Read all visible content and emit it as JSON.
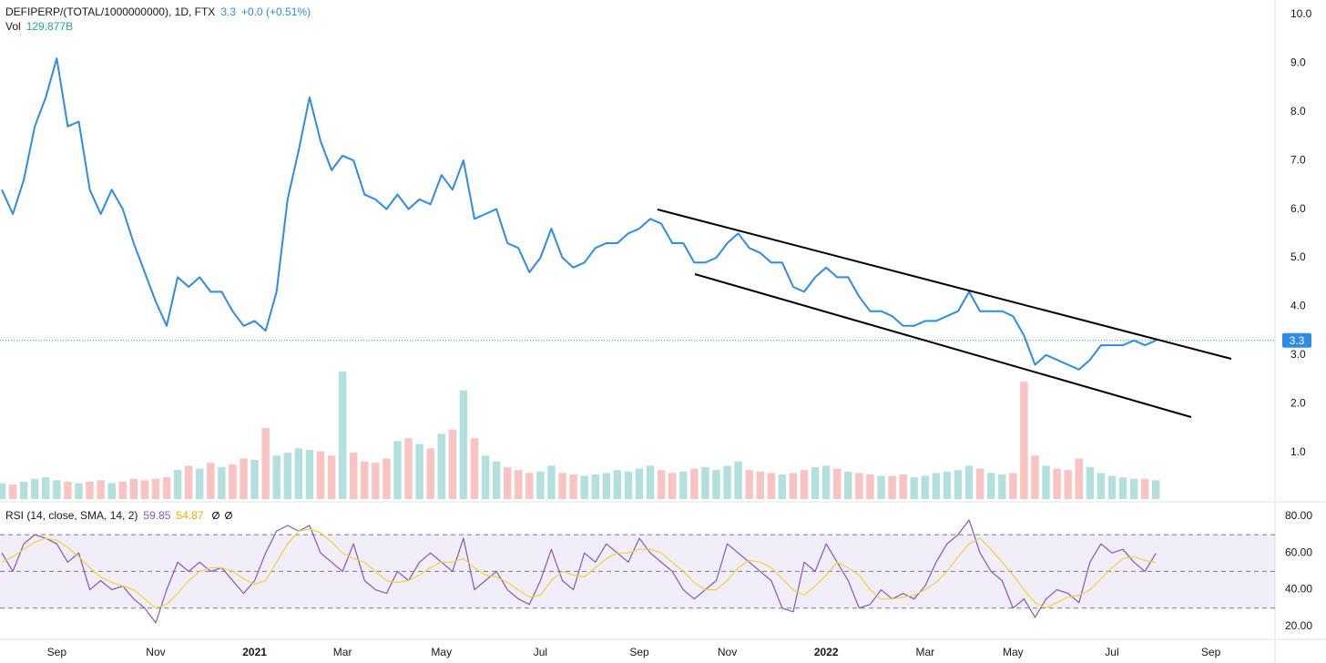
{
  "chart_data": [
    {
      "type": "line",
      "title": "DEFIPERP/(TOTAL/1000000000), 1D, FTX",
      "change": "+0.0 (+0.51%)",
      "color": "#2e8ce6",
      "categories": [
        null,
        null,
        null,
        null,
        null,
        "Sep",
        null,
        null,
        null,
        null,
        null,
        null,
        null,
        null,
        "Nov",
        null,
        null,
        null,
        null,
        null,
        null,
        null,
        null,
        "2021",
        null,
        null,
        null,
        null,
        null,
        null,
        null,
        "Mar",
        null,
        null,
        null,
        null,
        null,
        null,
        null,
        null,
        "May",
        null,
        null,
        null,
        null,
        null,
        null,
        null,
        null,
        "Jul",
        null,
        null,
        null,
        null,
        null,
        null,
        null,
        null,
        "Sep",
        null,
        null,
        null,
        null,
        null,
        null,
        null,
        "Nov",
        null,
        null,
        null,
        null,
        null,
        null,
        null,
        null,
        "2022",
        null,
        null,
        null,
        null,
        null,
        null,
        null,
        null,
        "Mar",
        null,
        null,
        null,
        null,
        null,
        null,
        null,
        "May",
        null,
        null,
        null,
        null,
        null,
        null,
        null,
        null,
        "Jul",
        null,
        null,
        null,
        null,
        null,
        null,
        null,
        null,
        "Sep",
        null,
        null,
        null,
        null,
        null
      ],
      "values": [
        6.4,
        5.9,
        6.6,
        7.7,
        8.3,
        9.1,
        7.7,
        7.8,
        6.4,
        5.9,
        6.4,
        6.0,
        5.3,
        4.7,
        4.1,
        3.6,
        4.6,
        4.4,
        4.6,
        4.3,
        4.3,
        3.9,
        3.6,
        3.7,
        3.5,
        4.3,
        6.2,
        7.2,
        8.3,
        7.4,
        6.8,
        7.1,
        7.0,
        6.3,
        6.2,
        6.0,
        6.3,
        6.0,
        6.2,
        6.1,
        6.7,
        6.4,
        7.0,
        5.8,
        5.9,
        6.0,
        5.3,
        5.2,
        4.7,
        5.0,
        5.6,
        5.0,
        4.8,
        4.9,
        5.2,
        5.3,
        5.3,
        5.5,
        5.6,
        5.8,
        5.7,
        5.3,
        5.3,
        4.9,
        4.9,
        5.0,
        5.3,
        5.5,
        5.2,
        5.1,
        4.9,
        4.9,
        4.4,
        4.3,
        4.6,
        4.8,
        4.6,
        4.6,
        4.2,
        3.9,
        3.9,
        3.8,
        3.6,
        3.6,
        3.7,
        3.7,
        3.8,
        3.9,
        4.3,
        3.9,
        3.9,
        3.9,
        3.8,
        3.4,
        2.8,
        3.0,
        2.9,
        2.8,
        2.7,
        2.9,
        3.2,
        3.2,
        3.2,
        3.3,
        3.2,
        3.3,
        null,
        null,
        null,
        null,
        null,
        null,
        null,
        null,
        null,
        null
      ],
      "ylim": [
        0,
        10.3
      ],
      "yticks": [
        {
          "value": 1,
          "label": "1.0"
        },
        {
          "value": 2,
          "label": "2.0"
        },
        {
          "value": 3,
          "label": "3.0"
        },
        {
          "value": 4,
          "label": "4.0"
        },
        {
          "value": 5,
          "label": "5.0"
        },
        {
          "value": 6,
          "label": "6.0"
        },
        {
          "value": 7,
          "label": "7.0"
        },
        {
          "value": 8,
          "label": "8.0"
        },
        {
          "value": 9,
          "label": "9.0"
        },
        {
          "value": 10,
          "label": "10.0"
        }
      ]
    },
    {
      "type": "bar",
      "title": "Vol",
      "value_label": "129.877B",
      "up_color": "#26a69a",
      "down_color": "#ef5350",
      "values": [
        110,
        100,
        120,
        140,
        150,
        130,
        120,
        110,
        120,
        130,
        110,
        120,
        140,
        130,
        140,
        150,
        200,
        230,
        210,
        250,
        220,
        240,
        280,
        270,
        490,
        300,
        320,
        350,
        340,
        330,
        300,
        880,
        320,
        260,
        250,
        280,
        400,
        420,
        380,
        350,
        450,
        480,
        750,
        420,
        300,
        260,
        220,
        200,
        180,
        190,
        230,
        180,
        170,
        160,
        170,
        180,
        200,
        190,
        210,
        230,
        200,
        180,
        190,
        210,
        220,
        200,
        230,
        260,
        200,
        190,
        180,
        170,
        180,
        200,
        220,
        230,
        210,
        190,
        180,
        170,
        160,
        160,
        170,
        150,
        160,
        180,
        190,
        200,
        230,
        210,
        180,
        170,
        180,
        810,
        300,
        230,
        210,
        200,
        280,
        220,
        180,
        160,
        150,
        140,
        140,
        129.877,
        null,
        null,
        null,
        null,
        null,
        null,
        null,
        null,
        null,
        null
      ]
    },
    {
      "type": "line",
      "title": "RSI (14, close, SMA, 14, 2)",
      "band": [
        30,
        70
      ],
      "levels": [
        70,
        50,
        30
      ],
      "band_color": "#7e57c2",
      "series": [
        {
          "color": "#7e57c2",
          "values": [
            60,
            50,
            65,
            70,
            68,
            65,
            55,
            60,
            40,
            45,
            40,
            42,
            35,
            30,
            22,
            40,
            55,
            50,
            55,
            50,
            52,
            45,
            38,
            45,
            60,
            72,
            75,
            72,
            75,
            60,
            55,
            50,
            65,
            45,
            40,
            38,
            50,
            45,
            55,
            60,
            55,
            50,
            68,
            40,
            45,
            50,
            40,
            35,
            32,
            45,
            62,
            45,
            40,
            60,
            55,
            65,
            60,
            55,
            68,
            60,
            55,
            50,
            40,
            35,
            40,
            45,
            65,
            60,
            55,
            50,
            45,
            30,
            28,
            55,
            50,
            65,
            55,
            45,
            30,
            32,
            40,
            35,
            38,
            35,
            42,
            55,
            65,
            70,
            78,
            60,
            50,
            45,
            30,
            35,
            25,
            35,
            40,
            38,
            33,
            55,
            65,
            60,
            62,
            55,
            50,
            59.85,
            null,
            null,
            null,
            null,
            null,
            null,
            null,
            null,
            null,
            null
          ]
        },
        {
          "color": "#f2d13c",
          "values": [
            55,
            58,
            62,
            66,
            68,
            67,
            63,
            58,
            52,
            47,
            44,
            42,
            40,
            35,
            30,
            32,
            38,
            45,
            50,
            52,
            52,
            50,
            46,
            43,
            45,
            55,
            65,
            72,
            73,
            71,
            66,
            60,
            57,
            55,
            50,
            45,
            44,
            45,
            48,
            52,
            55,
            55,
            57,
            52,
            48,
            47,
            44,
            40,
            36,
            37,
            45,
            50,
            48,
            47,
            52,
            57,
            60,
            60,
            62,
            62,
            60,
            55,
            50,
            44,
            40,
            40,
            45,
            52,
            56,
            55,
            52,
            46,
            40,
            37,
            42,
            48,
            55,
            52,
            48,
            40,
            35,
            35,
            36,
            37,
            40,
            44,
            50,
            58,
            65,
            68,
            62,
            55,
            48,
            40,
            33,
            30,
            33,
            36,
            37,
            40,
            46,
            52,
            57,
            58,
            56,
            54.87,
            null,
            null,
            null,
            null,
            null,
            null,
            null,
            null,
            null,
            null
          ]
        }
      ],
      "ylim": [
        14,
        87.4
      ],
      "yticks": [
        {
          "value": 20,
          "label": "20.00"
        },
        {
          "value": 40,
          "label": "40.00"
        },
        {
          "value": 60,
          "label": "60.00"
        },
        {
          "value": 80,
          "label": "80.00"
        }
      ]
    }
  ]
}
